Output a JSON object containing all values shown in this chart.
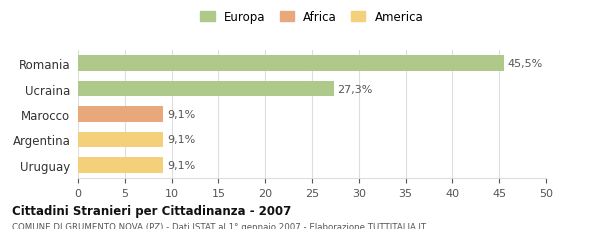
{
  "categories": [
    "Romania",
    "Ucraina",
    "Marocco",
    "Argentina",
    "Uruguay"
  ],
  "values": [
    45.5,
    27.3,
    9.1,
    9.1,
    9.1
  ],
  "bar_colors": [
    "#aec98a",
    "#aec98a",
    "#e8a87c",
    "#f5d07a",
    "#f5d07a"
  ],
  "value_labels": [
    "45,5%",
    "27,3%",
    "9,1%",
    "9,1%",
    "9,1%"
  ],
  "legend": [
    {
      "label": "Europa",
      "color": "#aec98a"
    },
    {
      "label": "Africa",
      "color": "#e8a87c"
    },
    {
      "label": "America",
      "color": "#f5d07a"
    }
  ],
  "xlim": [
    0,
    50
  ],
  "xticks": [
    0,
    5,
    10,
    15,
    20,
    25,
    30,
    35,
    40,
    45,
    50
  ],
  "title": "Cittadini Stranieri per Cittadinanza - 2007",
  "subtitle": "COMUNE DI GRUMENTO NOVA (PZ) - Dati ISTAT al 1° gennaio 2007 - Elaborazione TUTTITALIA.IT",
  "background_color": "#ffffff",
  "grid_color": "#dddddd"
}
